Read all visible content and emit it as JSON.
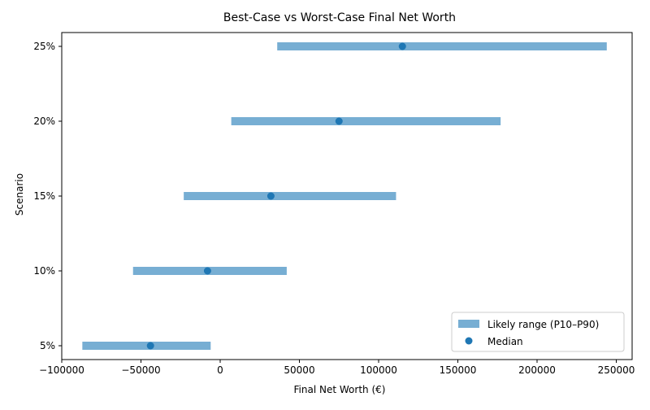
{
  "chart_data": {
    "type": "range",
    "title": "Best-Case vs Worst-Case Final Net Worth",
    "xlabel": "Final Net Worth (€)",
    "ylabel": "Scenario",
    "xlim": [
      -100000,
      260000
    ],
    "xticks": [
      -100000,
      -50000,
      0,
      50000,
      100000,
      150000,
      200000,
      250000
    ],
    "xtick_labels": [
      "−100000",
      "−50000",
      "0",
      "50000",
      "100000",
      "150000",
      "200000",
      "250000"
    ],
    "categories": [
      "5%",
      "10%",
      "15%",
      "20%",
      "25%"
    ],
    "ranges": [
      {
        "scenario": "5%",
        "p10": -87000,
        "p90": -6000
      },
      {
        "scenario": "10%",
        "p10": -55000,
        "p90": 42000
      },
      {
        "scenario": "15%",
        "p10": -23000,
        "p90": 111000
      },
      {
        "scenario": "20%",
        "p10": 7000,
        "p90": 177000
      },
      {
        "scenario": "25%",
        "p10": 36000,
        "p90": 244000
      }
    ],
    "medians": [
      -44000,
      -8000,
      32000,
      75000,
      115000
    ],
    "series": [
      {
        "name": "Likely range (P10–P90)",
        "color": "#77aed3"
      },
      {
        "name": "Median",
        "color": "#1f77b4"
      }
    ],
    "legend_location": "lower-right",
    "grid": false
  }
}
